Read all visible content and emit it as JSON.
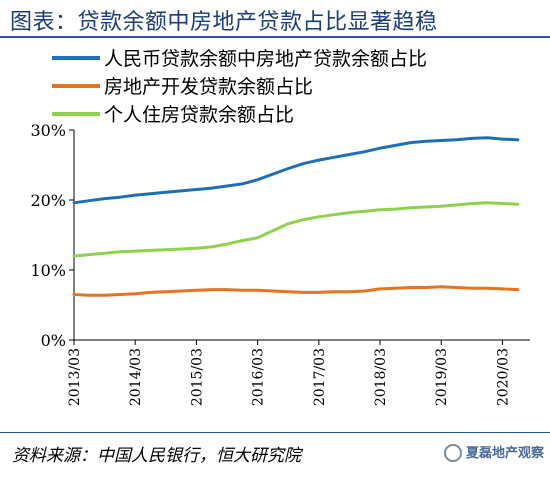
{
  "header": {
    "title": "图表：贷款余额中房地产贷款占比显著趋稳"
  },
  "footer": {
    "source": "资料来源：中国人民银行，恒大研究院",
    "watermark": "夏磊地产观察"
  },
  "chart_data": {
    "type": "line",
    "title": "图表：贷款余额中房地产贷款占比显著趋稳",
    "xlabel": "",
    "ylabel": "",
    "x_start": "2013/03",
    "x_ticks": [
      "2013/03",
      "2014/03",
      "2015/03",
      "2016/03",
      "2017/03",
      "2018/03",
      "2019/03",
      "2020/03"
    ],
    "ylim": [
      0,
      30
    ],
    "y_ticks": [
      0,
      10,
      20,
      30
    ],
    "y_tick_labels": [
      "0%",
      "10%",
      "20%",
      "30%"
    ],
    "grid": false,
    "legend_position": "top",
    "series": [
      {
        "name": "人民币贷款余额中房地产贷款余额占比",
        "color": "#1f6fb8",
        "x": [
          "2013/03",
          "2013/06",
          "2013/09",
          "2013/12",
          "2014/03",
          "2014/06",
          "2014/09",
          "2014/12",
          "2015/03",
          "2015/06",
          "2015/09",
          "2015/12",
          "2016/03",
          "2016/06",
          "2016/09",
          "2016/12",
          "2017/03",
          "2017/06",
          "2017/09",
          "2017/12",
          "2018/03",
          "2018/06",
          "2018/09",
          "2018/12",
          "2019/03",
          "2019/06",
          "2019/09",
          "2019/12",
          "2020/03",
          "2020/06"
        ],
        "values": [
          19.6,
          19.9,
          20.2,
          20.4,
          20.7,
          20.9,
          21.1,
          21.3,
          21.5,
          21.7,
          22.0,
          22.3,
          22.9,
          23.7,
          24.5,
          25.2,
          25.7,
          26.1,
          26.5,
          26.9,
          27.4,
          27.8,
          28.2,
          28.4,
          28.5,
          28.6,
          28.8,
          28.9,
          28.7,
          28.6
        ]
      },
      {
        "name": "房地产开发贷款余额占比",
        "color": "#e8731f",
        "x": [
          "2013/03",
          "2013/06",
          "2013/09",
          "2013/12",
          "2014/03",
          "2014/06",
          "2014/09",
          "2014/12",
          "2015/03",
          "2015/06",
          "2015/09",
          "2015/12",
          "2016/03",
          "2016/06",
          "2016/09",
          "2016/12",
          "2017/03",
          "2017/06",
          "2017/09",
          "2017/12",
          "2018/03",
          "2018/06",
          "2018/09",
          "2018/12",
          "2019/03",
          "2019/06",
          "2019/09",
          "2019/12",
          "2020/03",
          "2020/06"
        ],
        "values": [
          6.5,
          6.4,
          6.4,
          6.5,
          6.6,
          6.8,
          6.9,
          7.0,
          7.1,
          7.2,
          7.2,
          7.1,
          7.1,
          7.0,
          6.9,
          6.8,
          6.8,
          6.9,
          6.9,
          7.0,
          7.3,
          7.4,
          7.5,
          7.5,
          7.6,
          7.5,
          7.4,
          7.4,
          7.3,
          7.2
        ]
      },
      {
        "name": "个人住房贷款余额占比",
        "color": "#8dd14f",
        "x": [
          "2013/03",
          "2013/06",
          "2013/09",
          "2013/12",
          "2014/03",
          "2014/06",
          "2014/09",
          "2014/12",
          "2015/03",
          "2015/06",
          "2015/09",
          "2015/12",
          "2016/03",
          "2016/06",
          "2016/09",
          "2016/12",
          "2017/03",
          "2017/06",
          "2017/09",
          "2017/12",
          "2018/03",
          "2018/06",
          "2018/09",
          "2018/12",
          "2019/03",
          "2019/06",
          "2019/09",
          "2019/12",
          "2020/03",
          "2020/06"
        ],
        "values": [
          12.0,
          12.2,
          12.4,
          12.6,
          12.7,
          12.8,
          12.9,
          13.0,
          13.1,
          13.3,
          13.7,
          14.2,
          14.6,
          15.6,
          16.6,
          17.2,
          17.6,
          17.9,
          18.2,
          18.4,
          18.6,
          18.7,
          18.9,
          19.0,
          19.1,
          19.3,
          19.5,
          19.6,
          19.5,
          19.4
        ]
      }
    ]
  }
}
